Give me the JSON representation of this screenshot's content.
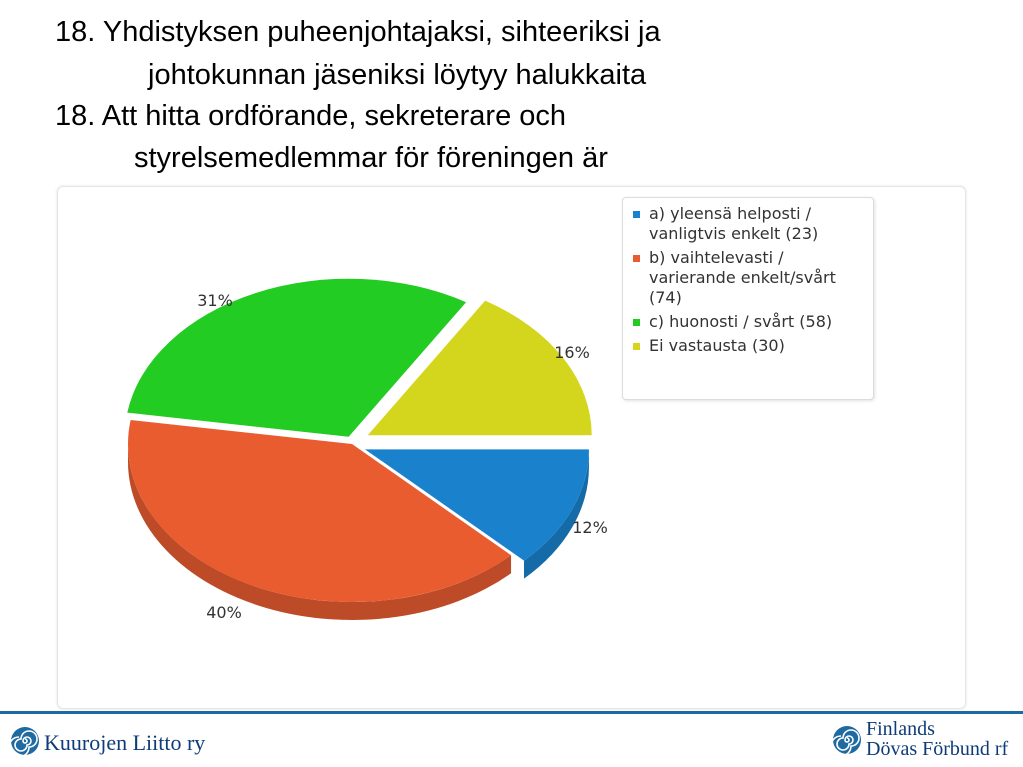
{
  "slide": {
    "title_lines": [
      "18. Yhdistyksen puheenjohtajaksi, sihteeriksi ja",
      "johtokunnan jäseniksi löytyy halukkaita",
      "18. Att hitta ordförande, sekreterare och",
      "styrelsemedlemmar för föreningen är"
    ]
  },
  "chart_data": {
    "type": "pie",
    "title": "",
    "legend_position": "top-right",
    "slices": [
      {
        "label": "a) yleensä helposti / vanligtvis enkelt (23)",
        "value": 23,
        "percent_label": "12%",
        "color": "#1a82cc"
      },
      {
        "label": "b) vaihtelevasti / varierande enkelt/svårt (74)",
        "value": 74,
        "percent_label": "40%",
        "color": "#e85c30"
      },
      {
        "label": "c) huonosti / svårt (58)",
        "value": 58,
        "percent_label": "31%",
        "color": "#22cc22"
      },
      {
        "label": "Ei vastausta (30)",
        "value": 30,
        "percent_label": "16%",
        "color": "#d4d61e"
      }
    ]
  },
  "footer": {
    "left_org": "Kuurojen Liitto ry",
    "right_org_line1": "Finlands",
    "right_org_line2": "Dövas Förbund rf",
    "rule_color": "#1f6aa0"
  }
}
